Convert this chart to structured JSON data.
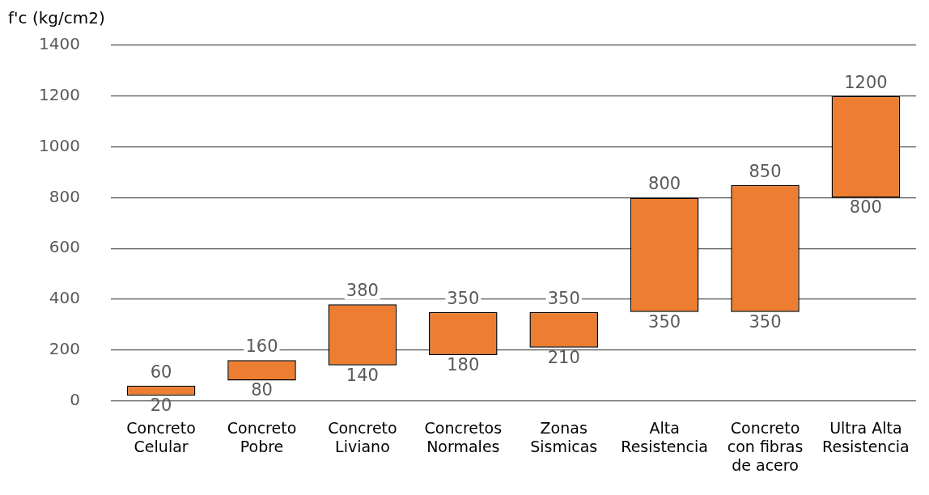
{
  "chart_data": {
    "type": "bar",
    "ylabel": "f'c (kg/cm2)",
    "categories": [
      "Concreto Celular",
      "Concreto Pobre",
      "Concreto Liviano",
      "Concretos Normales",
      "Zonas Sismicas",
      "Alta Resistencia",
      "Concreto con fibras de acero",
      "Ultra Alta Resistencia"
    ],
    "base": [
      20,
      80,
      140,
      180,
      210,
      350,
      350,
      800
    ],
    "values": [
      40,
      80,
      240,
      170,
      140,
      450,
      500,
      400
    ],
    "color": "#ed7d31",
    "ylim": [
      0,
      1400
    ],
    "yticks": [
      0,
      200,
      400,
      600,
      800,
      1000,
      1200,
      1400
    ],
    "grid": "y",
    "legend": false,
    "annotations": [
      {
        "text": "60",
        "x": "Concreto Celular",
        "y": 60
      },
      {
        "text": "20",
        "x": "Concreto Celular",
        "y": 20
      },
      {
        "text": "160",
        "x": "Concreto Pobre",
        "y": 160
      },
      {
        "text": "80",
        "x": "Concreto Pobre",
        "y": 80
      },
      {
        "text": "380",
        "x": "Concreto Liviano",
        "y": 380
      },
      {
        "text": "140",
        "x": "Concreto Liviano",
        "y": 140
      },
      {
        "text": "350",
        "x": "Concretos Normales",
        "y": 350
      },
      {
        "text": "180",
        "x": "Concretos Normales",
        "y": 180
      },
      {
        "text": "350",
        "x": "Zonas Sismicas",
        "y": 350
      },
      {
        "text": "210",
        "x": "Zonas Sismicas",
        "y": 210
      },
      {
        "text": "800",
        "x": "Alta Resistencia",
        "y": 800
      },
      {
        "text": "350",
        "x": "Alta Resistencia",
        "y": 350
      },
      {
        "text": "850",
        "x": "Concreto con fibras de acero",
        "y": 850
      },
      {
        "text": "350",
        "x": "Concreto con fibras de acero",
        "y": 350
      },
      {
        "text": "1200",
        "x": "Ultra Alta Resistencia",
        "y": 1200
      },
      {
        "text": "800",
        "x": "Ultra Alta Resistencia",
        "y": 800
      }
    ]
  }
}
